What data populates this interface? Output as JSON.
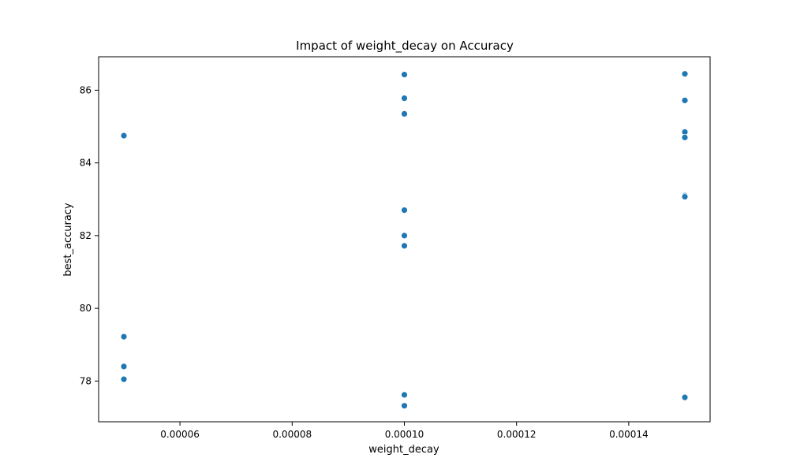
{
  "chart_data": {
    "type": "scatter",
    "title": "Impact of weight_decay on Accuracy",
    "xlabel": "weight_decay",
    "ylabel": "best_accuracy",
    "xlim": [
      4.55e-05,
      0.0001545
    ],
    "ylim": [
      76.88,
      86.92
    ],
    "xticks": [
      6e-05,
      8e-05,
      0.0001,
      0.00012,
      0.00014
    ],
    "xtick_labels": [
      "0.00006",
      "0.00008",
      "0.00010",
      "0.00012",
      "0.00014"
    ],
    "yticks": [
      78,
      80,
      82,
      84,
      86
    ],
    "ytick_labels": [
      "78",
      "80",
      "82",
      "84",
      "86"
    ],
    "grid": false,
    "point_color": "#1f77b4",
    "points": [
      {
        "x": 5e-05,
        "y": 84.75
      },
      {
        "x": 5e-05,
        "y": 79.22
      },
      {
        "x": 5e-05,
        "y": 78.4
      },
      {
        "x": 5e-05,
        "y": 78.05
      },
      {
        "x": 0.0001,
        "y": 86.43
      },
      {
        "x": 0.0001,
        "y": 85.78
      },
      {
        "x": 0.0001,
        "y": 85.35
      },
      {
        "x": 0.0001,
        "y": 82.7
      },
      {
        "x": 0.0001,
        "y": 82.0
      },
      {
        "x": 0.0001,
        "y": 81.72
      },
      {
        "x": 0.0001,
        "y": 77.62
      },
      {
        "x": 0.0001,
        "y": 77.32
      },
      {
        "x": 0.00015,
        "y": 86.45
      },
      {
        "x": 0.00015,
        "y": 85.72
      },
      {
        "x": 0.00015,
        "y": 84.85
      },
      {
        "x": 0.00015,
        "y": 84.7
      },
      {
        "x": 0.00015,
        "y": 83.1
      },
      {
        "x": 0.00015,
        "y": 83.07
      },
      {
        "x": 0.00015,
        "y": 77.55
      }
    ]
  }
}
